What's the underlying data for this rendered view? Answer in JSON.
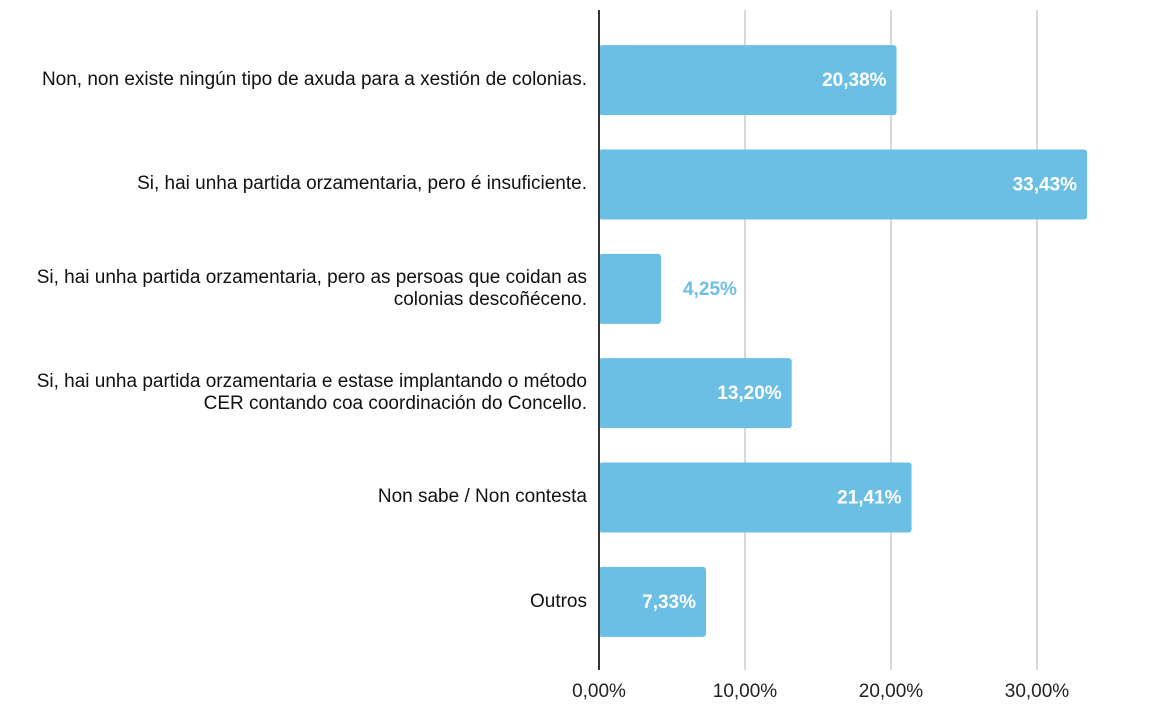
{
  "chart_data": {
    "type": "bar",
    "orientation": "horizontal",
    "categories": [
      "Non, non existe ningún tipo de axuda para a xestión de colonias.",
      "Si, hai unha partida orzamentaria, pero é insuficiente.",
      "Si, hai unha partida orzamentaria, pero as persoas que coidan as colonias descoñéceno.",
      "Si, hai unha partida orzamentaria e estase implantando o método  CER contando coa coordinación do Concello.",
      "Non sabe / Non contesta",
      "Outros"
    ],
    "values": [
      20.38,
      33.43,
      4.25,
      13.2,
      21.41,
      7.33
    ],
    "value_labels": [
      "20,38%",
      "33,43%",
      "4,25%",
      "13,20%",
      "21,41%",
      "7,33%"
    ],
    "color": "#6bbfe4",
    "xlim": [
      0,
      35
    ],
    "xticks": [
      {
        "value": 0,
        "label": "0,00%"
      },
      {
        "value": 10,
        "label": "10,00%"
      },
      {
        "value": 20,
        "label": "20,00%"
      },
      {
        "value": 30,
        "label": "30,00%"
      }
    ],
    "grid": true
  }
}
